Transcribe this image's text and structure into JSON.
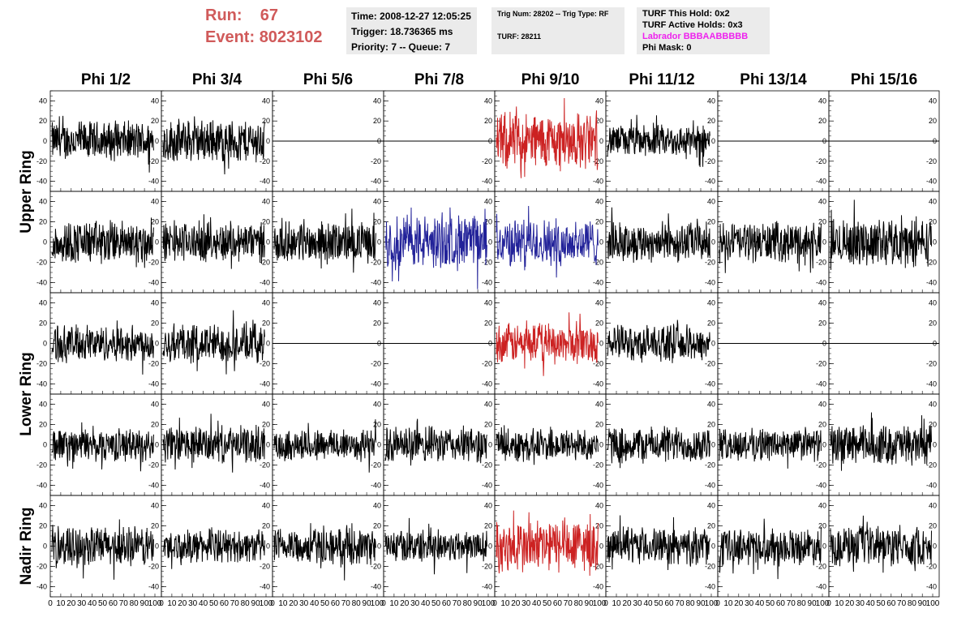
{
  "run_header": {
    "run_label": "Run:",
    "run_value": "67",
    "event_label": "Event:",
    "event_value": "8023102",
    "color": "#d05a5a"
  },
  "time_box": {
    "time": "Time: 2008-12-27 12:05:25",
    "trigger": "Trigger: 18.736365 ms",
    "priority": "Priority: 7 -- Queue: 7"
  },
  "trig_box": {
    "trig_line": "Trig Num: 28202 -- Trig Type: RF",
    "turf_line": "TURF: 28211"
  },
  "turf_box": {
    "this_hold": "TURF This Hold: 0x2",
    "active_holds": "TURF Active Holds: 0x3",
    "labrador": "Labrador BBBAABBBBB",
    "labrador_color": "#ee22ee",
    "phi_mask": "Phi Mask: 0"
  },
  "column_headers": [
    "Phi 1/2",
    "Phi 3/4",
    "Phi 5/6",
    "Phi 7/8",
    "Phi 9/10",
    "Phi 11/12",
    "Phi 13/14",
    "Phi 15/16"
  ],
  "row_labels": [
    {
      "label": "Upper Ring",
      "rows": [
        0,
        1
      ]
    },
    {
      "label": "Lower Ring",
      "rows": [
        2,
        3
      ]
    },
    {
      "label": "Nadir Ring",
      "rows": [
        4,
        4
      ]
    }
  ],
  "colors": {
    "normal": "#000000",
    "trig_red": "#cc2222",
    "trig_blue": "#222299"
  },
  "chart_data": {
    "type": "line",
    "description_rows": [
      "row1",
      "row2",
      "row3",
      "row4",
      "row5"
    ],
    "ylim": [
      -50,
      50
    ],
    "xlim": [
      0,
      100
    ],
    "yticks": [
      "40",
      "20",
      "0",
      "-20",
      "-40"
    ],
    "xtick_labels": [
      "0",
      "10",
      "20",
      "30",
      "40",
      "50",
      "60",
      "70",
      "80",
      "90",
      "100"
    ],
    "panels": [
      [
        "noise:black:22",
        "noise:black:24",
        "flat",
        "flat",
        "noise:red:32",
        "noise:black:18",
        "flat",
        "flat"
      ],
      [
        "noise:black:24",
        "noise:black:22",
        "noise:black:22",
        "noise:blue:30",
        "noise:blue:26",
        "noise:black:22",
        "noise:black:22",
        "noise:black:26"
      ],
      [
        "noise:black:20",
        "noise:black:22",
        "flat",
        "flat",
        "noise:red:22",
        "noise:black:20",
        "flat",
        "flat"
      ],
      [
        "noise:black:18",
        "noise:black:20",
        "noise:black:18",
        "noise:black:20",
        "noise:black:18",
        "noise:black:20",
        "noise:black:18",
        "noise:black:22"
      ],
      [
        "noise:black:22",
        "noise:black:18",
        "noise:black:20",
        "noise:black:18",
        "noise:red:30",
        "noise:black:20",
        "noise:black:20",
        "noise:black:22"
      ]
    ]
  }
}
